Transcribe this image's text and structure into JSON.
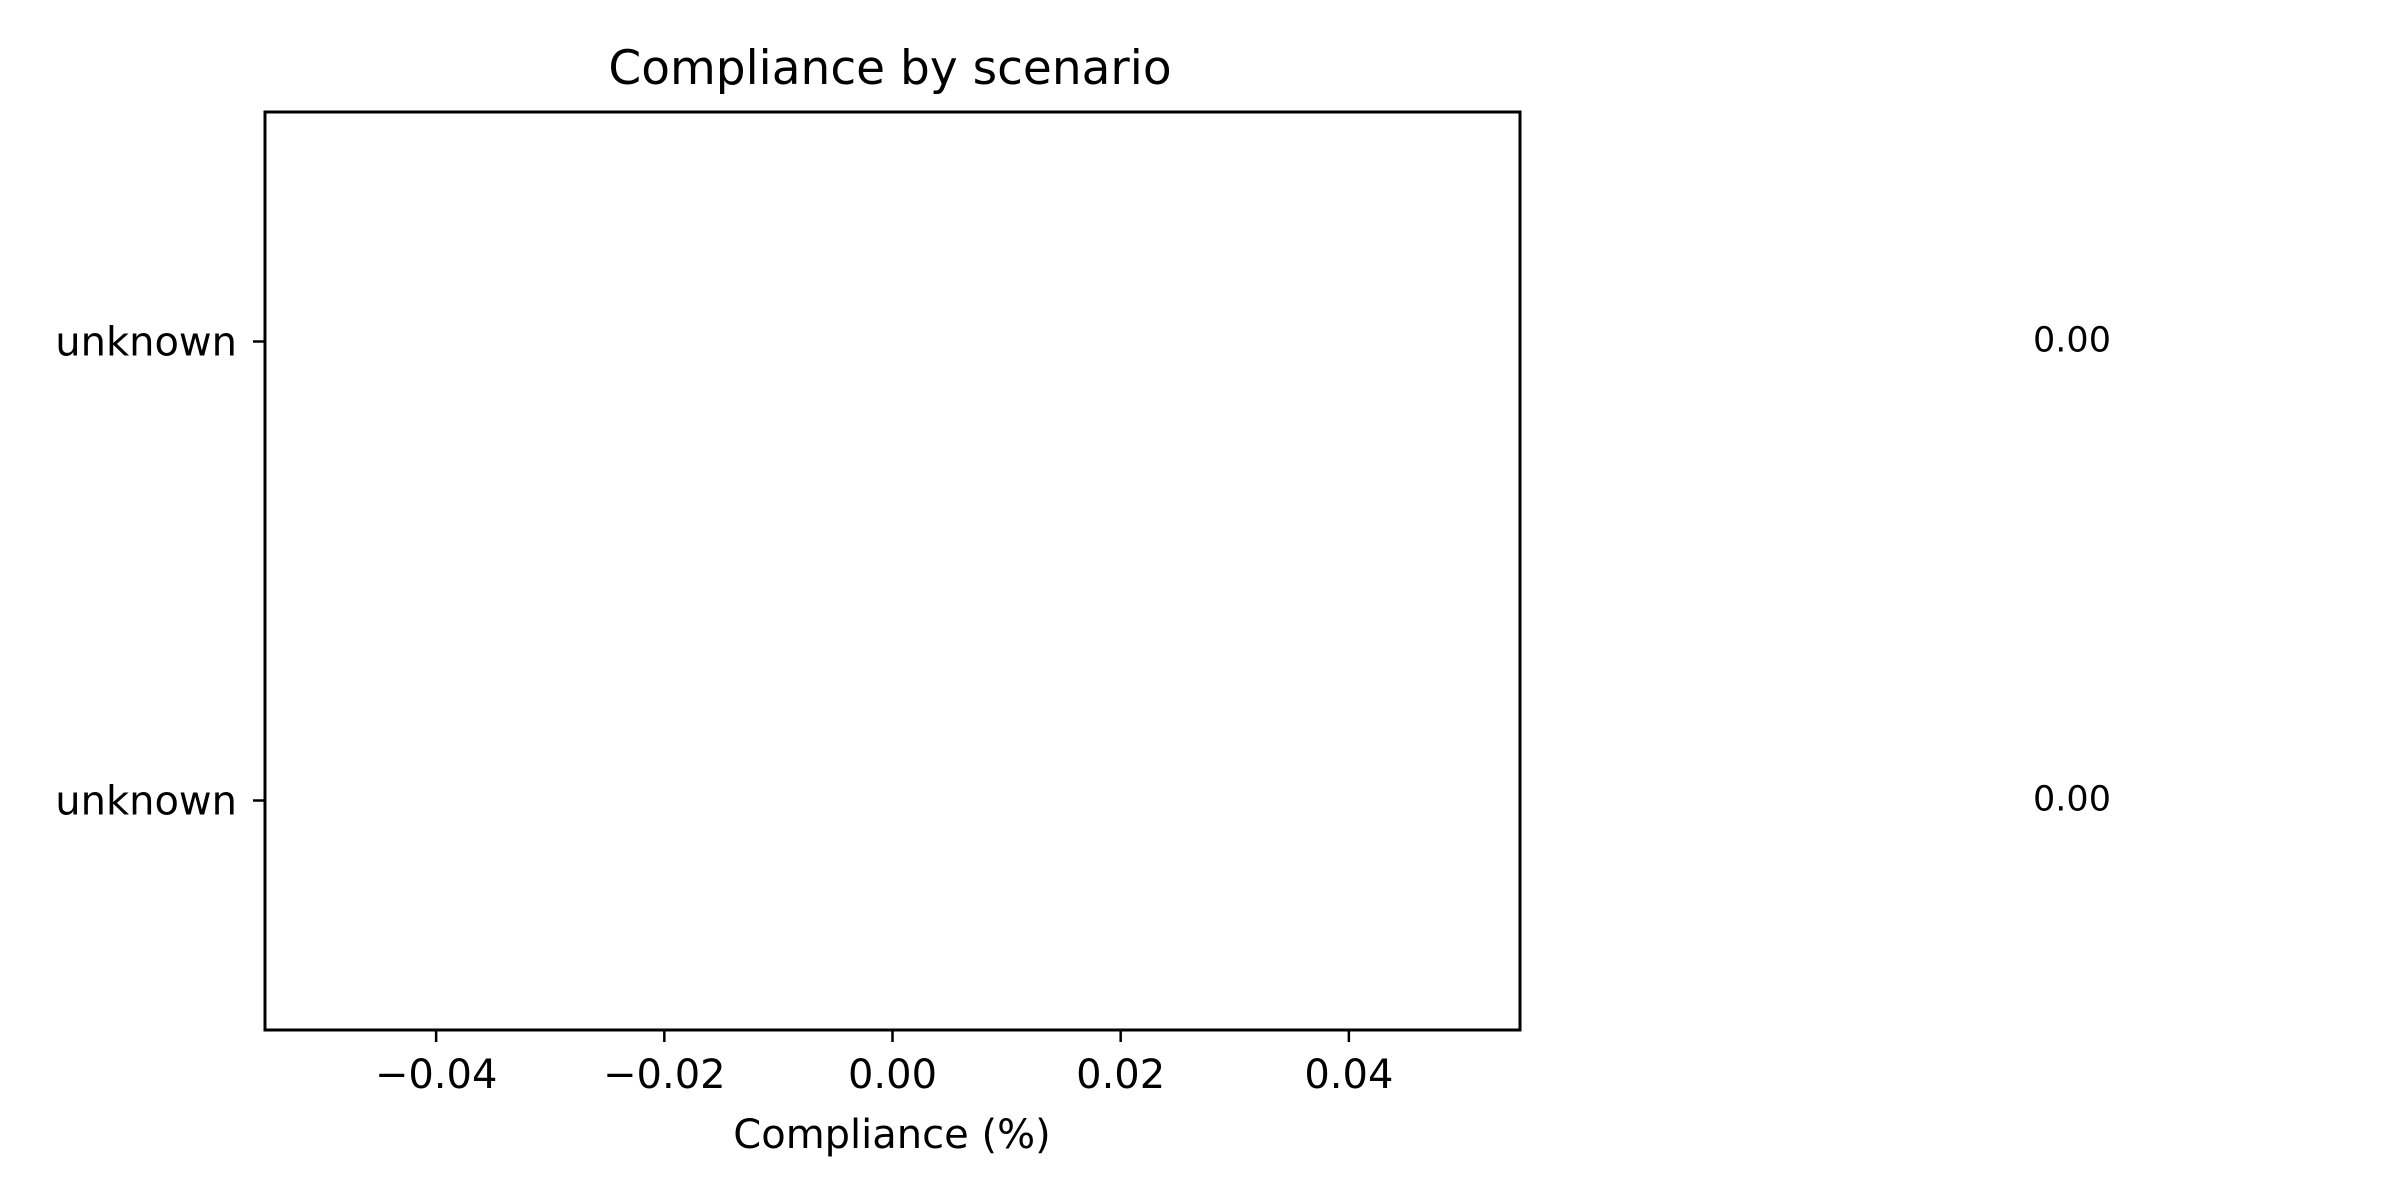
{
  "chart_data": {
    "type": "bar",
    "orientation": "horizontal",
    "title": "Compliance by scenario",
    "xlabel": "Compliance (%)",
    "ylabel": "",
    "categories": [
      "unknown",
      "unknown"
    ],
    "values": [
      0.0,
      0.0
    ],
    "data_labels": [
      "0.00",
      "0.00"
    ],
    "xlim": [
      -0.055,
      0.055
    ],
    "x_ticks": [
      -0.04,
      -0.02,
      0.0,
      0.02,
      0.04
    ],
    "x_tick_labels": [
      "−0.04",
      "−0.02",
      "0.00",
      "0.02",
      "0.04"
    ],
    "grid": false,
    "legend": "none"
  }
}
